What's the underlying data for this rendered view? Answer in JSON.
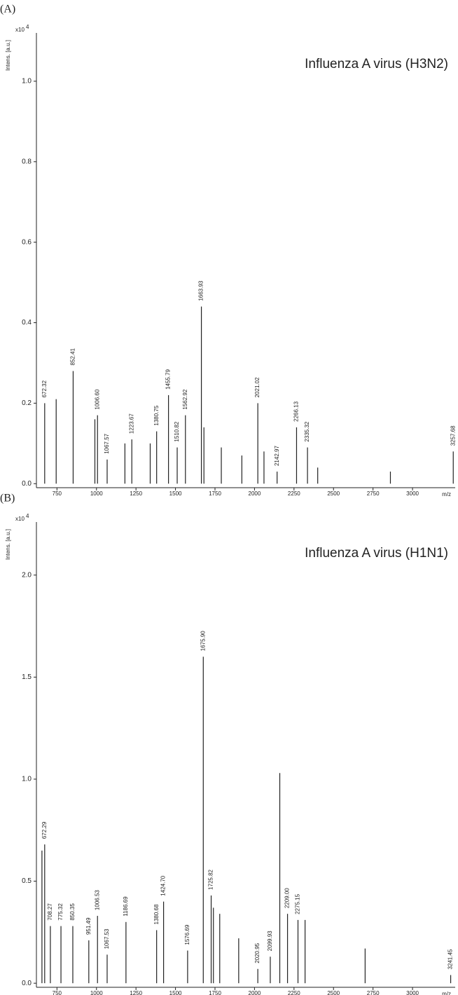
{
  "chart_data": [
    {
      "type": "stem",
      "panel_label": "(A)",
      "title": "Influenza A virus (H3N2)",
      "ylabel": "Intens. [a.u.]",
      "y_scale_base": "x10",
      "y_scale_exponent": "4",
      "xlabel": "m/z",
      "color": "#222222",
      "xlim": [
        620,
        3270
      ],
      "ylim": [
        -0.01,
        1.12
      ],
      "xticks": [
        750,
        1000,
        1250,
        1500,
        1750,
        2000,
        2250,
        2500,
        2750,
        3000
      ],
      "yticks": [
        {
          "value": 0,
          "label": "0.0"
        },
        {
          "value": 0.2,
          "label": "0.2"
        },
        {
          "value": 0.4,
          "label": "0.4"
        },
        {
          "value": 0.6,
          "label": "0.6"
        },
        {
          "value": 0.8,
          "label": "0.8"
        },
        {
          "value": 1,
          "label": "1.0"
        }
      ],
      "peaks": {
        "x": [
          672.32,
          852.41,
          1006.6,
          1067.57,
          1223.67,
          1380.75,
          1455.79,
          1510.82,
          1562.92,
          1663.93,
          2021.02,
          2142.97,
          2266.13,
          2335.32,
          3257.68
        ],
        "x_labels": [
          "672.32",
          "852.41",
          "1006.60",
          "1067.57",
          "1223.67",
          "1380.75",
          "1455.79",
          "1510.82",
          "1562.92",
          "1663.93",
          "2021.02",
          "2142.97",
          "2266.13",
          "2335.32",
          "3257.68"
        ],
        "values": [
          0.2,
          0.28,
          0.17,
          0.06,
          0.11,
          0.13,
          0.22,
          0.09,
          0.17,
          0.44,
          0.2,
          0.03,
          0.14,
          0.09,
          0.08
        ]
      },
      "minor": {
        "x": [
          745,
          990,
          1180,
          1340,
          1680,
          1790,
          1920,
          2060,
          2400,
          2860
        ],
        "values": [
          0.21,
          0.16,
          0.1,
          0.1,
          0.14,
          0.09,
          0.07,
          0.08,
          0.04,
          0.03
        ]
      }
    },
    {
      "type": "stem",
      "panel_label": "(B)",
      "title": "Influenza A virus (H1N1)",
      "ylabel": "Intens. [a.u.]",
      "y_scale_base": "x10",
      "y_scale_exponent": "4",
      "xlabel": "m/z",
      "color": "#222222",
      "xlim": [
        620,
        3270
      ],
      "ylim": [
        -0.02,
        2.26
      ],
      "xticks": [
        750,
        1000,
        1250,
        1500,
        1750,
        2000,
        2250,
        2500,
        2750,
        3000
      ],
      "yticks": [
        {
          "value": 0,
          "label": "0.0"
        },
        {
          "value": 0.5,
          "label": "0.5"
        },
        {
          "value": 1,
          "label": "1.0"
        },
        {
          "value": 1.5,
          "label": "1.5"
        },
        {
          "value": 2,
          "label": "2.0"
        }
      ],
      "peaks": {
        "x": [
          672.29,
          708.27,
          775.32,
          850.35,
          951.49,
          1006.53,
          1067.53,
          1186.69,
          1380.68,
          1424.7,
          1576.69,
          1675.9,
          1725.82,
          2020.95,
          2099.93,
          2209,
          2275.15,
          3241.45
        ],
        "x_labels": [
          "672.29",
          "708.27",
          "775.32",
          "850.35",
          "951.49",
          "1006.53",
          "1067.53",
          "1186.69",
          "1380.68",
          "1424.70",
          "1576.69",
          "1675.90",
          "1725.82",
          "2020.95",
          "2099.93",
          "2209.00",
          "2275.15",
          "3241.45"
        ],
        "values": [
          0.68,
          0.28,
          0.28,
          0.28,
          0.21,
          0.33,
          0.14,
          0.3,
          0.26,
          0.4,
          0.16,
          1.6,
          0.43,
          0.07,
          0.13,
          0.34,
          0.31,
          0.04
        ]
      },
      "minor": {
        "x": [
          655,
          1740,
          1780,
          1900,
          2160,
          2320,
          2700
        ],
        "values": [
          0.65,
          0.37,
          0.34,
          0.22,
          1.03,
          0.31,
          0.17
        ]
      }
    }
  ]
}
